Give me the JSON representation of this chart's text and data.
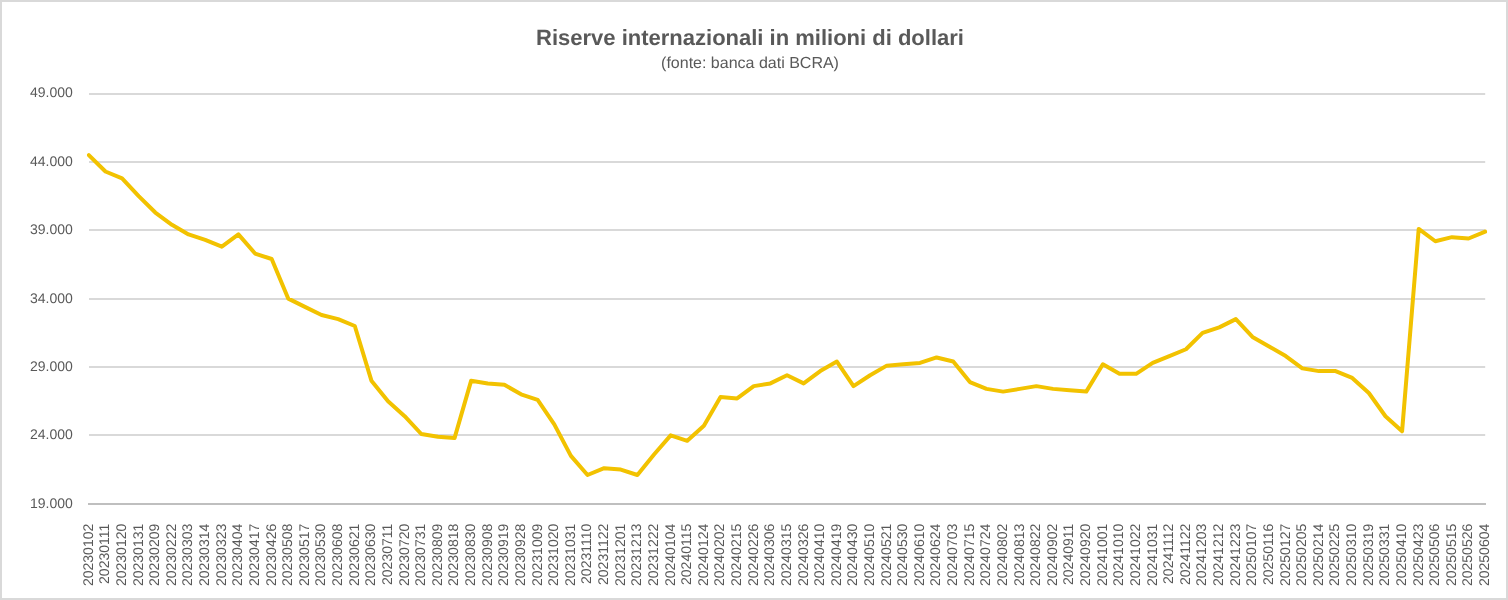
{
  "chart_data": {
    "type": "line",
    "title": "Riserve internazionali in milioni di dollari",
    "subtitle": "(fonte: banca dati BCRA)",
    "categories": [
      "20230102",
      "20230111",
      "20230120",
      "20230131",
      "20230209",
      "20230222",
      "20230303",
      "20230314",
      "20230323",
      "20230404",
      "20230417",
      "20230426",
      "20230508",
      "20230517",
      "20230530",
      "20230608",
      "20230621",
      "20230630",
      "20230711",
      "20230720",
      "20230731",
      "20230809",
      "20230818",
      "20230830",
      "20230908",
      "20230919",
      "20230928",
      "20231009",
      "20231020",
      "20231031",
      "20231110",
      "20231122",
      "20231201",
      "20231213",
      "20231222",
      "20240104",
      "20240115",
      "20240124",
      "20240202",
      "20240215",
      "20240226",
      "20240306",
      "20240315",
      "20240326",
      "20240410",
      "20240419",
      "20240430",
      "20240510",
      "20240521",
      "20240530",
      "20240610",
      "20240624",
      "20240703",
      "20240715",
      "20240724",
      "20240802",
      "20240813",
      "20240822",
      "20240902",
      "20240911",
      "20240920",
      "20241001",
      "20241010",
      "20241022",
      "20241031",
      "20241112",
      "20241122",
      "20241203",
      "20241212",
      "20241223",
      "20250107",
      "20250116",
      "20250127",
      "20250205",
      "20250214",
      "20250225",
      "20250310",
      "20250319",
      "20250331",
      "20250410",
      "20250423",
      "20250506",
      "20250515",
      "20250526",
      "20250604"
    ],
    "series": [
      {
        "color": "#f2c200",
        "values": [
          44500,
          43300,
          42800,
          41500,
          40300,
          39400,
          38700,
          38300,
          37800,
          38700,
          37300,
          36900,
          34000,
          33400,
          32800,
          32500,
          32000,
          28000,
          26500,
          25400,
          24100,
          23900,
          23800,
          28000,
          27800,
          27700,
          27000,
          26600,
          24800,
          22500,
          21100,
          21600,
          21500,
          21100,
          22600,
          24000,
          23600,
          24700,
          26800,
          26700,
          27600,
          27800,
          28400,
          27800,
          28700,
          29400,
          27600,
          28400,
          29100,
          29200,
          29300,
          29700,
          29400,
          27900,
          27400,
          27200,
          27400,
          27600,
          27400,
          27300,
          27200,
          29200,
          28500,
          28500,
          29300,
          29800,
          30300,
          31500,
          31900,
          32500,
          31200,
          30500,
          29800,
          28900,
          28700,
          28700,
          28200,
          27100,
          25400,
          24300,
          39100,
          38200,
          38500,
          38400,
          38900
        ]
      }
    ],
    "ylim": [
      19000,
      49000
    ],
    "yticks": [
      {
        "value": 19000,
        "label": "19.000"
      },
      {
        "value": 24000,
        "label": "24.000"
      },
      {
        "value": 29000,
        "label": "29.000"
      },
      {
        "value": 34000,
        "label": "34.000"
      },
      {
        "value": 39000,
        "label": "39.000"
      },
      {
        "value": 44000,
        "label": "44.000"
      },
      {
        "value": 49000,
        "label": "49.000"
      }
    ],
    "grid": "y",
    "legend": false,
    "marker": "none",
    "line_style": "solid"
  }
}
